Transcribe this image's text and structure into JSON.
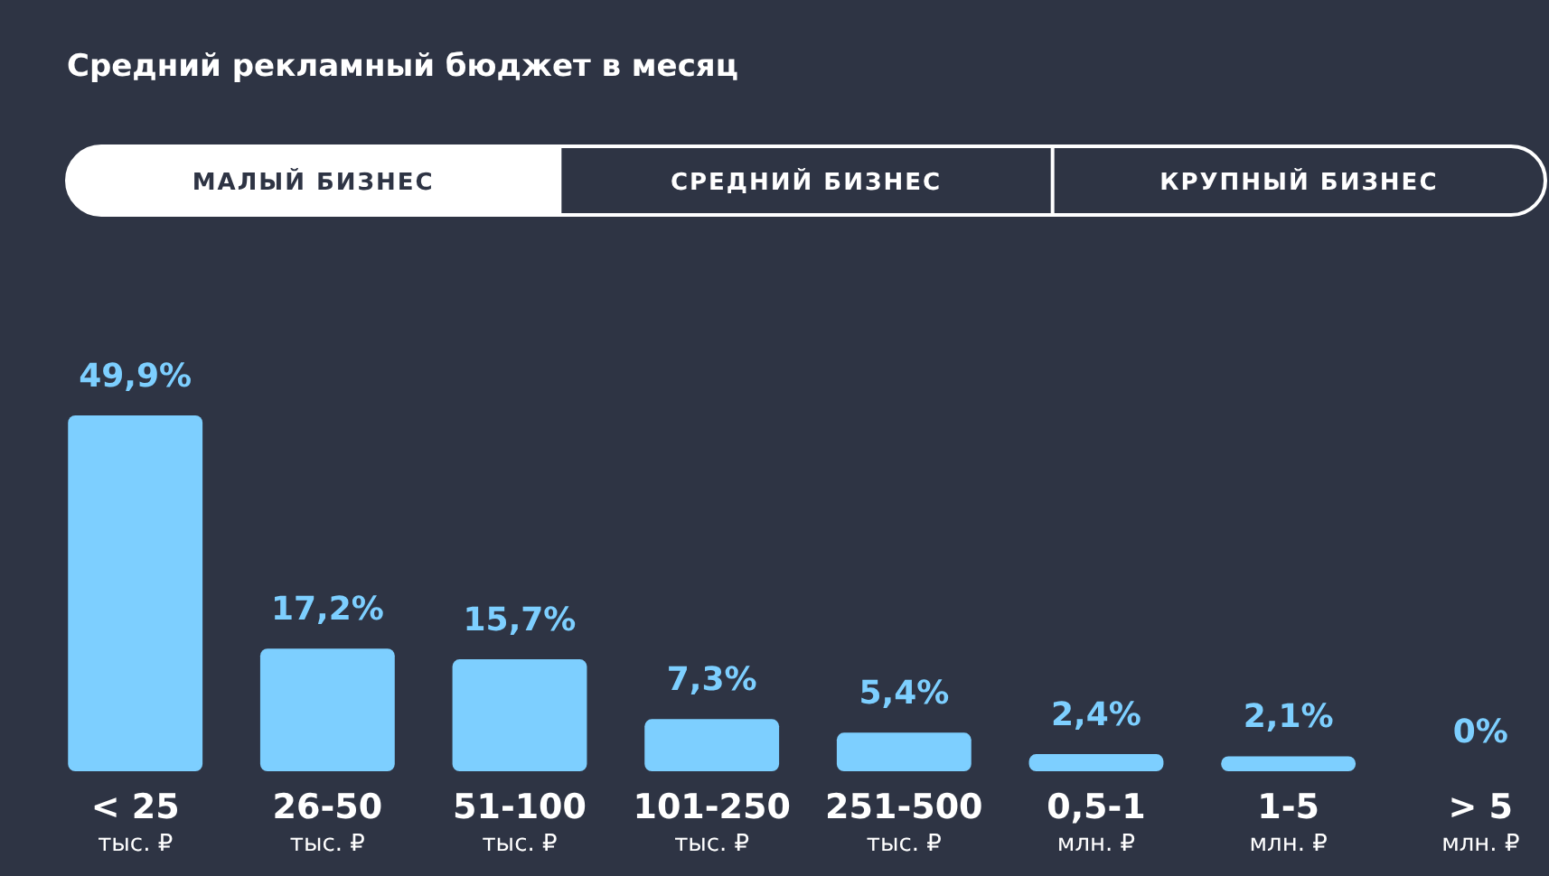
{
  "chart_data": {
    "type": "bar",
    "title": "Средний рекламный бюджет в месяц",
    "annotations": [
      "МАЛЫЙ БИЗНЕС",
      "СРЕДНИЙ БИЗНЕС",
      "КРУПНЫЙ БИЗНЕС"
    ],
    "categories": [
      "< 25\nтыс. ₽",
      "26-50\nтыс. ₽",
      "51-100\nтыс. ₽",
      "101-250\nтыс. ₽",
      "251-500\nтыс. ₽",
      "0,5-1\nмлн. ₽",
      "1-5\nмлн. ₽",
      "> 5\nмлн. ₽"
    ],
    "values": [
      49.9,
      17.2,
      15.7,
      7.3,
      5.4,
      2.4,
      2.1,
      0
    ],
    "value_labels": [
      "49,9%",
      "17,2%",
      "15,7%",
      "7,3%",
      "5,4%",
      "2,4%",
      "2,1%",
      "0%"
    ],
    "color": "#7dcfff"
  }
}
